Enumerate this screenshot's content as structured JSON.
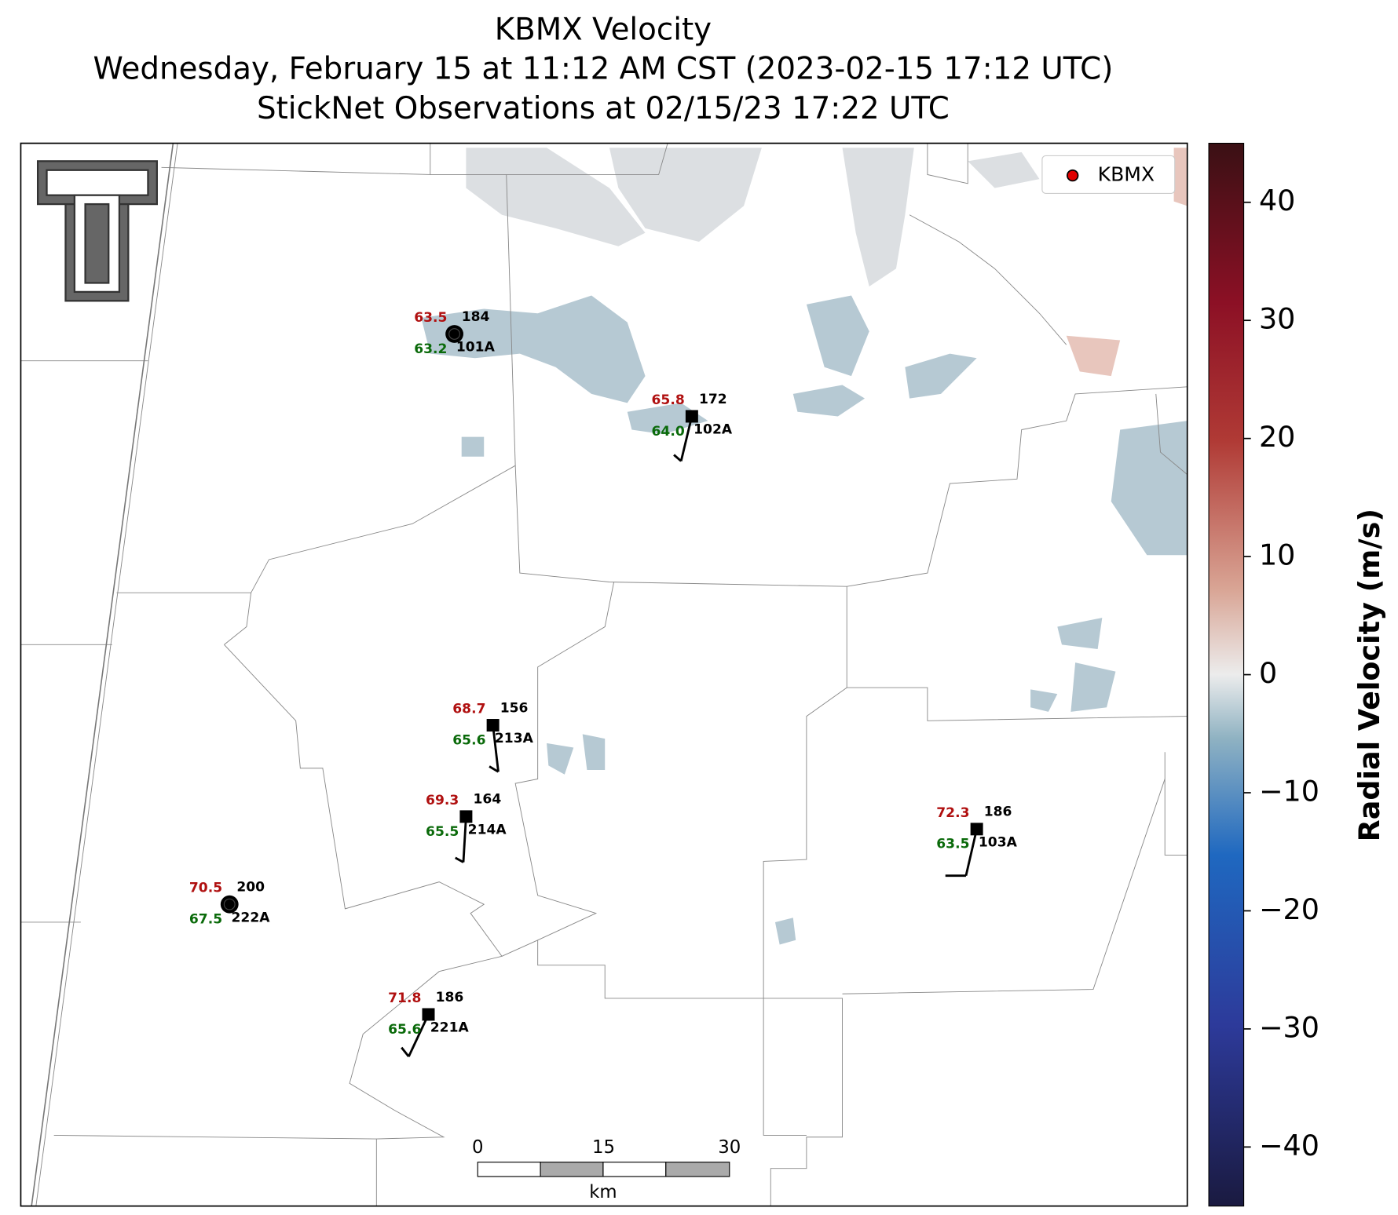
{
  "header": {
    "title": "KBMX Velocity",
    "subtitle": "Wednesday, February 15 at 11:12 AM CST (2023-02-15 17:12 UTC)",
    "subtitle2": "StickNet Observations at 02/15/23 17:22 UTC"
  },
  "legend": {
    "label": "KBMX",
    "color": "#e00000"
  },
  "stations": [
    {
      "temp": "63.5",
      "pressure": "184",
      "dewpoint": "63.2",
      "id": "101A"
    },
    {
      "temp": "65.8",
      "pressure": "172",
      "dewpoint": "64.0",
      "id": "102A"
    },
    {
      "temp": "68.7",
      "pressure": "156",
      "dewpoint": "65.6",
      "id": "213A"
    },
    {
      "temp": "69.3",
      "pressure": "164",
      "dewpoint": "65.5",
      "id": "214A"
    },
    {
      "temp": "70.5",
      "pressure": "200",
      "dewpoint": "67.5",
      "id": "222A"
    },
    {
      "temp": "72.3",
      "pressure": "186",
      "dewpoint": "63.5",
      "id": "103A"
    },
    {
      "temp": "71.8",
      "pressure": "186",
      "dewpoint": "65.6",
      "id": "221A"
    }
  ],
  "scalebar": {
    "ticks": [
      0,
      15,
      30
    ],
    "unit": "km"
  },
  "colorbar": {
    "label": "Radial Velocity (m/s)",
    "lim": [
      -45,
      45
    ],
    "ticks": [
      40,
      30,
      20,
      10,
      0,
      {
        "value": -10,
        "label": "−10"
      },
      {
        "value": -20,
        "label": "−20"
      },
      {
        "value": -30,
        "label": "−30"
      },
      {
        "value": -40,
        "label": "−40"
      }
    ]
  }
}
